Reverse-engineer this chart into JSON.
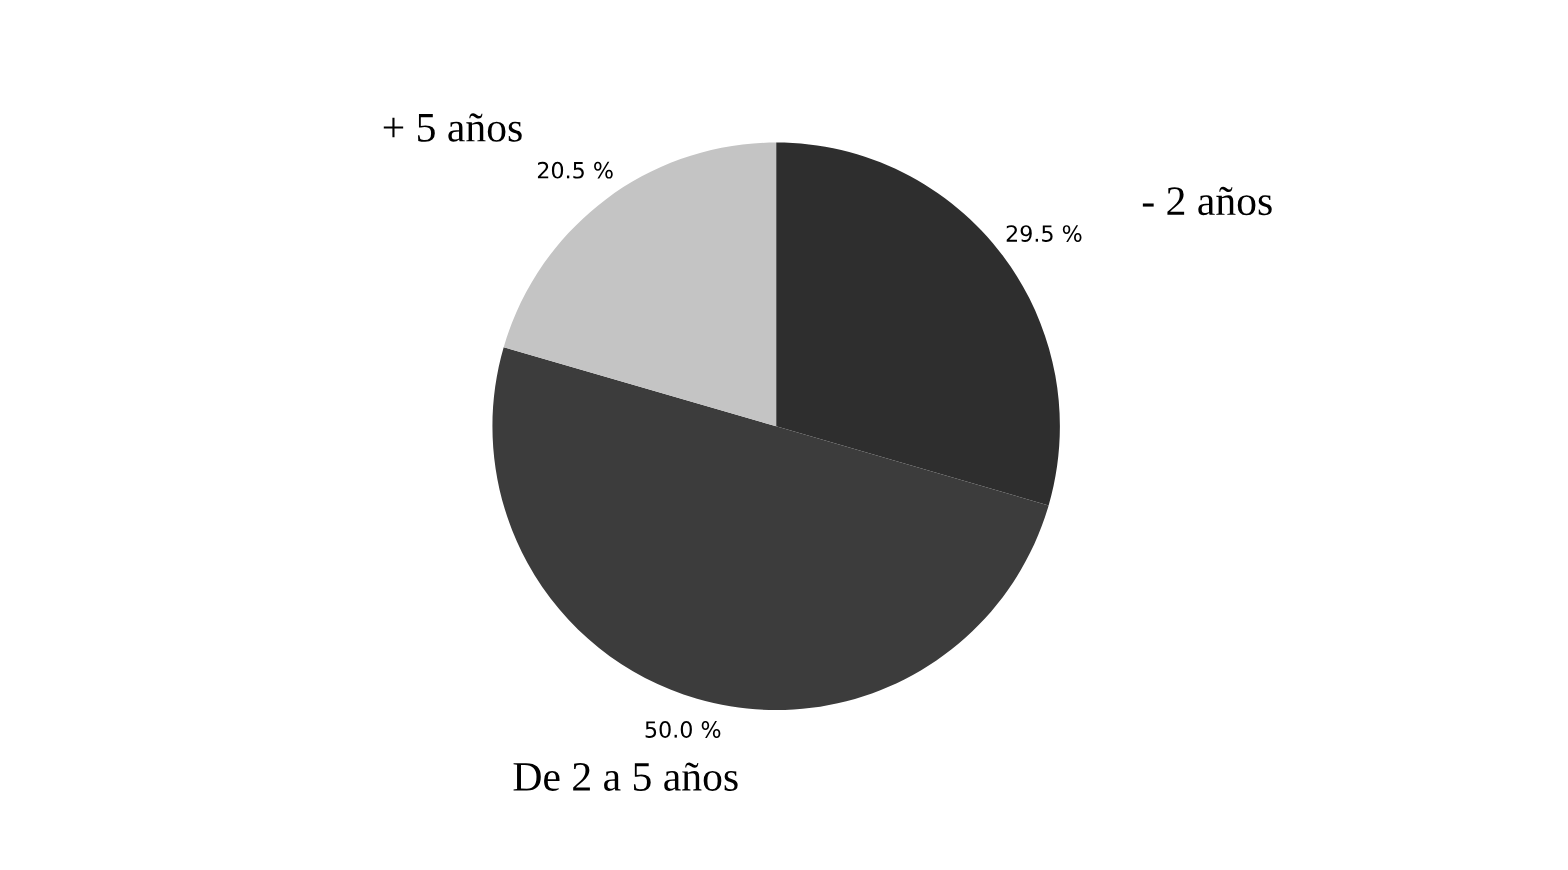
{
  "chart_data": {
    "type": "pie",
    "categories": [
      "- 2 años",
      "De 2 a 5 años",
      "+ 5 años"
    ],
    "values": [
      29.5,
      50.0,
      20.5
    ],
    "colors": [
      "#2e2e2e",
      "#3c3c3c",
      "#c4c4c4"
    ],
    "value_labels": [
      "29.5 %",
      "50.0 %",
      "20.5 %"
    ]
  }
}
